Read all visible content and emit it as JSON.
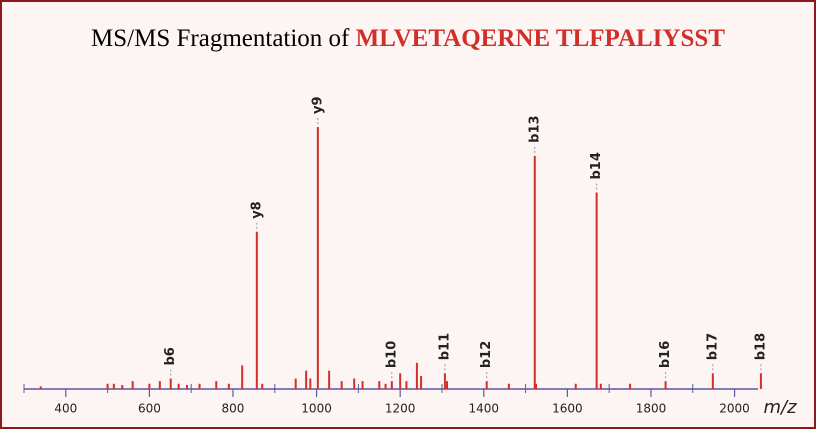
{
  "chart_data": {
    "type": "spectrum",
    "title": "MS/MS Fragmentation of",
    "sequence": "MLVETAQERNE TLFPALIYSST",
    "xlabel": "m/z",
    "xlim": [
      300,
      2080
    ],
    "ylim": [
      0,
      100
    ],
    "xticks": [
      400,
      600,
      800,
      1000,
      1200,
      1400,
      1600,
      1800,
      2000
    ],
    "xminor_ticks": [
      300,
      500,
      700,
      900,
      1100,
      1300,
      1500,
      1700,
      1900
    ],
    "color": "#d12f2a",
    "axis_color": "#5a5a9e",
    "x": [
      651,
      857,
      1003,
      1180,
      1307,
      1407,
      1522,
      1670,
      1835,
      1948,
      2063,
      340,
      500,
      515,
      535,
      560,
      600,
      625,
      670,
      690,
      720,
      760,
      790,
      822,
      870,
      950,
      975,
      985,
      1030,
      1060,
      1090,
      1110,
      1150,
      1165,
      1200,
      1215,
      1240,
      1250,
      1312,
      1460,
      1525,
      1620,
      1680,
      1750
    ],
    "values": [
      4,
      60,
      100,
      3,
      6,
      3,
      89,
      75,
      3,
      6,
      6,
      1,
      2,
      2,
      1.5,
      3,
      2,
      3,
      2,
      1.5,
      2,
      3,
      2,
      9,
      2,
      4,
      7,
      4,
      7,
      3,
      4,
      3,
      3,
      2,
      6,
      3,
      10,
      5,
      3,
      2,
      2,
      2,
      2,
      2
    ],
    "labels": [
      "b6",
      "y8",
      "y9",
      "b10",
      "b11",
      "b12",
      "b13",
      "b14",
      "b16",
      "b17",
      "b18",
      null,
      null,
      null,
      null,
      null,
      null,
      null,
      null,
      null,
      null,
      null,
      null,
      null,
      null,
      null,
      null,
      null,
      null,
      null,
      null,
      null,
      null,
      null,
      null,
      null,
      null,
      null,
      null,
      null,
      null,
      null,
      null,
      null
    ]
  }
}
